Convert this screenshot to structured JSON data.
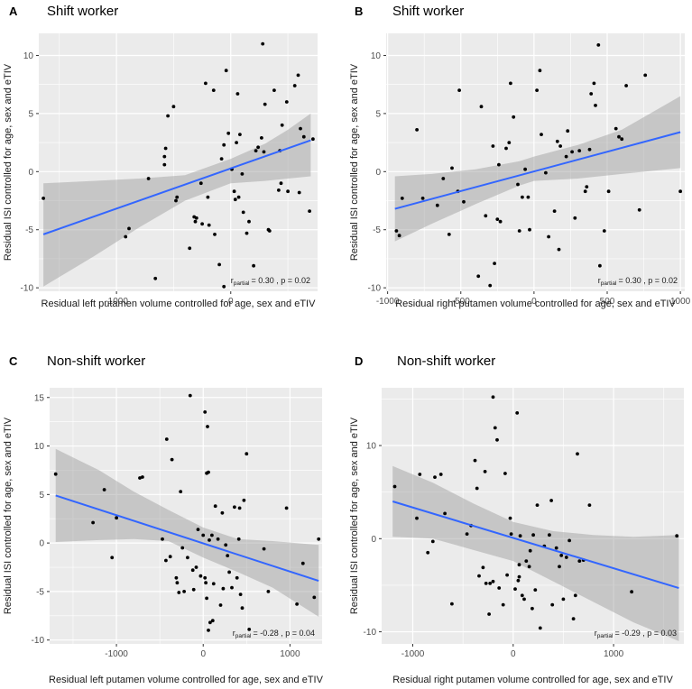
{
  "chart_data": [
    {
      "type": "scatter",
      "panel": "A",
      "title": "Shift worker",
      "xlabel": "Residual left putamen volume controlled for age, sex and eTIV",
      "ylabel": "Residual ISI controlled for age, sex and eTIV",
      "xlim": [
        -1680,
        760
      ],
      "ylim": [
        -10.3,
        11.9
      ],
      "xticks": [
        -1000,
        0
      ],
      "xtick_labels": [
        "-1000",
        "0"
      ],
      "yticks": [
        -10,
        -5,
        0,
        5,
        10
      ],
      "ytick_labels": [
        "-10",
        "-5",
        "0",
        "5",
        "10"
      ],
      "grid": true,
      "annotation": {
        "r_prefix": "r",
        "r_sub": "partial",
        "text": "= 0.30 , p = 0.02"
      },
      "fit": {
        "x": [
          -1640,
          700
        ],
        "y": [
          -5.4,
          2.7
        ]
      },
      "band": {
        "x": [
          -1640,
          -1200,
          -800,
          -400,
          0,
          300,
          500,
          700
        ],
        "lower": [
          -9.9,
          -7.3,
          -4.8,
          -2.5,
          -1.0,
          -0.8,
          -0.6,
          -0.4
        ],
        "upper": [
          -1.0,
          -0.8,
          -0.6,
          -0.3,
          1.1,
          2.4,
          3.6,
          5.0
        ]
      },
      "points": [
        [
          -1640,
          -2.3
        ],
        [
          -920,
          -5.6
        ],
        [
          -890,
          -4.9
        ],
        [
          -720,
          -0.6
        ],
        [
          -660,
          -9.2
        ],
        [
          -580,
          0.6
        ],
        [
          -580,
          1.3
        ],
        [
          -570,
          2.0
        ],
        [
          -550,
          4.8
        ],
        [
          -500,
          5.6
        ],
        [
          -480,
          -2.5
        ],
        [
          -470,
          -2.2
        ],
        [
          -360,
          -6.6
        ],
        [
          -320,
          -3.9
        ],
        [
          -310,
          -4.3
        ],
        [
          -300,
          -4.0
        ],
        [
          -260,
          -1.0
        ],
        [
          -250,
          -4.5
        ],
        [
          -220,
          7.6
        ],
        [
          -200,
          -2.2
        ],
        [
          -190,
          -4.6
        ],
        [
          -150,
          7.0
        ],
        [
          -140,
          -5.4
        ],
        [
          -100,
          -8.0
        ],
        [
          -80,
          1.1
        ],
        [
          -60,
          2.3
        ],
        [
          -60,
          -9.9
        ],
        [
          -40,
          8.7
        ],
        [
          -20,
          3.3
        ],
        [
          10,
          0.2
        ],
        [
          30,
          -1.7
        ],
        [
          40,
          -2.4
        ],
        [
          50,
          2.5
        ],
        [
          60,
          6.7
        ],
        [
          70,
          -2.2
        ],
        [
          80,
          3.2
        ],
        [
          100,
          -0.2
        ],
        [
          110,
          -3.5
        ],
        [
          140,
          -5.3
        ],
        [
          160,
          -4.3
        ],
        [
          200,
          -8.1
        ],
        [
          220,
          1.8
        ],
        [
          240,
          2.1
        ],
        [
          270,
          2.9
        ],
        [
          280,
          11.0
        ],
        [
          290,
          1.7
        ],
        [
          300,
          5.8
        ],
        [
          330,
          -5.0
        ],
        [
          340,
          -5.1
        ],
        [
          380,
          7.0
        ],
        [
          420,
          -1.6
        ],
        [
          430,
          1.8
        ],
        [
          440,
          -1.0
        ],
        [
          450,
          4.0
        ],
        [
          490,
          6.0
        ],
        [
          500,
          -1.7
        ],
        [
          560,
          7.4
        ],
        [
          590,
          8.3
        ],
        [
          600,
          -1.8
        ],
        [
          610,
          3.7
        ],
        [
          640,
          3.0
        ],
        [
          690,
          -3.4
        ],
        [
          720,
          2.8
        ]
      ]
    },
    {
      "type": "scatter",
      "panel": "B",
      "title": "Shift worker",
      "xlabel": "Residual right putamen volume controlled for age, sex and eTIV",
      "ylabel": "Residual ISI controlled for age, sex and eTIV",
      "xlim": [
        -1010,
        1030
      ],
      "ylim": [
        -10.3,
        11.9
      ],
      "xticks": [
        -1000,
        -500,
        0,
        500,
        1000
      ],
      "xtick_labels": [
        "-1000",
        "-500",
        "0",
        "500",
        "1000"
      ],
      "yticks": [
        -10,
        -5,
        0,
        5,
        10
      ],
      "ytick_labels": [
        "-10",
        "-5",
        "0",
        "5",
        "10"
      ],
      "grid": true,
      "annotation": {
        "r_prefix": "r",
        "r_sub": "partial",
        "text": "= 0.30 , p = 0.02"
      },
      "fit": {
        "x": [
          -950,
          1000
        ],
        "y": [
          -3.2,
          3.4
        ]
      },
      "band": {
        "x": [
          -950,
          -700,
          -400,
          -100,
          0,
          300,
          600,
          1000
        ],
        "lower": [
          -6.0,
          -4.5,
          -2.8,
          -1.2,
          -0.8,
          -0.6,
          -0.2,
          0.3
        ],
        "upper": [
          -0.4,
          -0.2,
          0.2,
          0.9,
          1.3,
          2.3,
          3.6,
          6.5
        ]
      },
      "points": [
        [
          -940,
          -5.1
        ],
        [
          -920,
          -5.5
        ],
        [
          -900,
          -2.3
        ],
        [
          -800,
          3.6
        ],
        [
          -760,
          -2.3
        ],
        [
          -660,
          -2.9
        ],
        [
          -620,
          -0.6
        ],
        [
          -580,
          -5.4
        ],
        [
          -560,
          0.3
        ],
        [
          -520,
          -1.7
        ],
        [
          -510,
          7.0
        ],
        [
          -480,
          -2.6
        ],
        [
          -380,
          -9.0
        ],
        [
          -360,
          5.6
        ],
        [
          -330,
          -3.8
        ],
        [
          -300,
          -9.8
        ],
        [
          -280,
          2.2
        ],
        [
          -270,
          -7.9
        ],
        [
          -250,
          -4.1
        ],
        [
          -240,
          0.6
        ],
        [
          -230,
          -4.3
        ],
        [
          -190,
          2.0
        ],
        [
          -170,
          2.5
        ],
        [
          -160,
          7.6
        ],
        [
          -140,
          4.7
        ],
        [
          -110,
          -1.1
        ],
        [
          -100,
          -5.1
        ],
        [
          -80,
          -2.2
        ],
        [
          -60,
          0.2
        ],
        [
          -40,
          -2.2
        ],
        [
          -30,
          -5.0
        ],
        [
          20,
          7.0
        ],
        [
          40,
          8.7
        ],
        [
          50,
          3.2
        ],
        [
          80,
          -0.1
        ],
        [
          100,
          -5.6
        ],
        [
          140,
          -3.4
        ],
        [
          160,
          2.6
        ],
        [
          170,
          -6.7
        ],
        [
          180,
          2.2
        ],
        [
          220,
          1.3
        ],
        [
          230,
          3.5
        ],
        [
          260,
          1.7
        ],
        [
          280,
          -4.0
        ],
        [
          310,
          1.8
        ],
        [
          350,
          -1.7
        ],
        [
          360,
          -1.3
        ],
        [
          380,
          1.9
        ],
        [
          390,
          6.7
        ],
        [
          410,
          7.6
        ],
        [
          420,
          5.7
        ],
        [
          440,
          10.9
        ],
        [
          450,
          -8.1
        ],
        [
          480,
          -5.1
        ],
        [
          510,
          -1.7
        ],
        [
          560,
          3.7
        ],
        [
          580,
          3.0
        ],
        [
          600,
          2.8
        ],
        [
          630,
          7.4
        ],
        [
          720,
          -3.3
        ],
        [
          760,
          8.3
        ],
        [
          1000,
          -1.7
        ]
      ]
    },
    {
      "type": "scatter",
      "panel": "C",
      "title": "Non-shift worker",
      "xlabel": "Residual left putamen volume controlled for age, sex and eTIV",
      "ylabel": "Residual ISI controlled for age, sex and eTIV",
      "xlim": [
        -1770,
        1370
      ],
      "ylim": [
        -10.4,
        16.0
      ],
      "xticks": [
        -1000,
        0,
        1000
      ],
      "xtick_labels": [
        "-1000",
        "0",
        "1000"
      ],
      "yticks": [
        -10,
        -5,
        0,
        5,
        10,
        15
      ],
      "ytick_labels": [
        "-10",
        "-5",
        "0",
        "5",
        "10",
        "15"
      ],
      "grid": true,
      "annotation": {
        "r_prefix": "r",
        "r_sub": "partial",
        "text": "= -0.28 , p = 0.04"
      },
      "fit": {
        "x": [
          -1700,
          1330
        ],
        "y": [
          4.9,
          -3.9
        ]
      },
      "band": {
        "x": [
          -1700,
          -1200,
          -800,
          -400,
          0,
          400,
          800,
          1330
        ],
        "lower": [
          0.1,
          0.3,
          0.4,
          0.2,
          -1.5,
          -3.0,
          -4.6,
          -7.6
        ],
        "upper": [
          9.7,
          7.5,
          5.3,
          3.4,
          1.6,
          0.4,
          0.2,
          -0.2
        ]
      },
      "points": [
        [
          -1700,
          7.1
        ],
        [
          -1270,
          2.1
        ],
        [
          -1140,
          5.5
        ],
        [
          -1050,
          -1.5
        ],
        [
          -1000,
          2.6
        ],
        [
          -730,
          6.7
        ],
        [
          -700,
          6.8
        ],
        [
          -470,
          0.4
        ],
        [
          -430,
          -1.8
        ],
        [
          -420,
          10.7
        ],
        [
          -380,
          -1.4
        ],
        [
          -360,
          8.6
        ],
        [
          -310,
          -3.6
        ],
        [
          -300,
          -4.1
        ],
        [
          -280,
          -5.1
        ],
        [
          -260,
          5.3
        ],
        [
          -240,
          -0.5
        ],
        [
          -220,
          -5.0
        ],
        [
          -180,
          -1.5
        ],
        [
          -150,
          15.2
        ],
        [
          -120,
          -2.8
        ],
        [
          -110,
          -4.8
        ],
        [
          -80,
          -2.5
        ],
        [
          -60,
          1.4
        ],
        [
          -30,
          -3.4
        ],
        [
          0,
          0.8
        ],
        [
          20,
          -3.6
        ],
        [
          20,
          13.5
        ],
        [
          30,
          -4.1
        ],
        [
          40,
          -5.7
        ],
        [
          40,
          7.2
        ],
        [
          50,
          12.0
        ],
        [
          60,
          7.3
        ],
        [
          60,
          -9.0
        ],
        [
          70,
          0.3
        ],
        [
          80,
          -8.2
        ],
        [
          100,
          0.8
        ],
        [
          110,
          -8.0
        ],
        [
          120,
          -4.2
        ],
        [
          140,
          3.8
        ],
        [
          170,
          0.4
        ],
        [
          200,
          -6.4
        ],
        [
          220,
          3.1
        ],
        [
          230,
          -4.7
        ],
        [
          260,
          -0.2
        ],
        [
          280,
          -1.3
        ],
        [
          300,
          -3.0
        ],
        [
          330,
          -4.6
        ],
        [
          360,
          3.7
        ],
        [
          390,
          -3.6
        ],
        [
          410,
          0.4
        ],
        [
          420,
          3.6
        ],
        [
          430,
          -5.3
        ],
        [
          450,
          -6.7
        ],
        [
          470,
          4.4
        ],
        [
          500,
          9.2
        ],
        [
          530,
          -8.9
        ],
        [
          700,
          -0.6
        ],
        [
          750,
          -5.0
        ],
        [
          960,
          3.6
        ],
        [
          1080,
          -6.3
        ],
        [
          1150,
          -2.1
        ],
        [
          1280,
          -5.6
        ],
        [
          1330,
          0.4
        ]
      ]
    },
    {
      "type": "scatter",
      "panel": "D",
      "title": "Non-shift worker",
      "xlabel": "Residual right putamen volume controlled for age, sex and eTIV",
      "ylabel": "Residual ISI controlled for age, sex and eTIV",
      "xlim": [
        -1310,
        1700
      ],
      "ylim": [
        -11.3,
        16.2
      ],
      "xticks": [
        -1000,
        0,
        1000
      ],
      "xtick_labels": [
        "-1000",
        "0",
        "1000"
      ],
      "yticks": [
        -10,
        0,
        10
      ],
      "ytick_labels": [
        "-10",
        "0",
        "10"
      ],
      "grid": true,
      "annotation": {
        "r_prefix": "r",
        "r_sub": "partial",
        "text": "= -0.29 , p = 0.03"
      },
      "fit": {
        "x": [
          -1200,
          1650
        ],
        "y": [
          4.0,
          -5.3
        ]
      },
      "band": {
        "x": [
          -1200,
          -800,
          -400,
          0,
          400,
          800,
          1200,
          1650
        ],
        "lower": [
          0.2,
          0.0,
          -1.2,
          -2.4,
          -4.6,
          -6.8,
          -9.0,
          -11.0
        ],
        "upper": [
          7.8,
          6.0,
          3.8,
          1.8,
          0.8,
          0.4,
          0.2,
          0.4
        ]
      },
      "points": [
        [
          -1180,
          5.6
        ],
        [
          -960,
          2.2
        ],
        [
          -930,
          6.9
        ],
        [
          -850,
          -1.5
        ],
        [
          -800,
          -0.3
        ],
        [
          -780,
          6.6
        ],
        [
          -720,
          6.9
        ],
        [
          -680,
          2.7
        ],
        [
          -610,
          -7.0
        ],
        [
          -460,
          0.5
        ],
        [
          -420,
          1.4
        ],
        [
          -380,
          8.4
        ],
        [
          -360,
          5.4
        ],
        [
          -340,
          -4.0
        ],
        [
          -300,
          -3.1
        ],
        [
          -280,
          7.2
        ],
        [
          -270,
          -4.8
        ],
        [
          -240,
          -8.1
        ],
        [
          -230,
          -4.8
        ],
        [
          -200,
          15.2
        ],
        [
          -200,
          -4.6
        ],
        [
          -180,
          11.9
        ],
        [
          -160,
          10.6
        ],
        [
          -140,
          -5.3
        ],
        [
          -100,
          -7.1
        ],
        [
          -80,
          7.0
        ],
        [
          -60,
          -3.9
        ],
        [
          -30,
          2.2
        ],
        [
          -20,
          0.5
        ],
        [
          20,
          -5.4
        ],
        [
          40,
          13.5
        ],
        [
          50,
          -4.5
        ],
        [
          60,
          -2.8
        ],
        [
          60,
          -4.1
        ],
        [
          70,
          0.3
        ],
        [
          90,
          -6.1
        ],
        [
          110,
          -6.5
        ],
        [
          130,
          -2.4
        ],
        [
          160,
          -3.0
        ],
        [
          170,
          -1.3
        ],
        [
          190,
          -7.5
        ],
        [
          200,
          0.4
        ],
        [
          220,
          -5.5
        ],
        [
          240,
          3.6
        ],
        [
          270,
          -9.6
        ],
        [
          310,
          -0.8
        ],
        [
          360,
          0.4
        ],
        [
          380,
          4.1
        ],
        [
          390,
          -7.1
        ],
        [
          430,
          -1.0
        ],
        [
          460,
          -3.0
        ],
        [
          480,
          -1.8
        ],
        [
          500,
          -6.5
        ],
        [
          530,
          -2.0
        ],
        [
          560,
          -0.2
        ],
        [
          600,
          -8.6
        ],
        [
          620,
          -6.1
        ],
        [
          640,
          9.1
        ],
        [
          660,
          -2.4
        ],
        [
          700,
          -2.3
        ],
        [
          760,
          3.6
        ],
        [
          1180,
          -5.7
        ],
        [
          1630,
          0.3
        ]
      ]
    }
  ]
}
